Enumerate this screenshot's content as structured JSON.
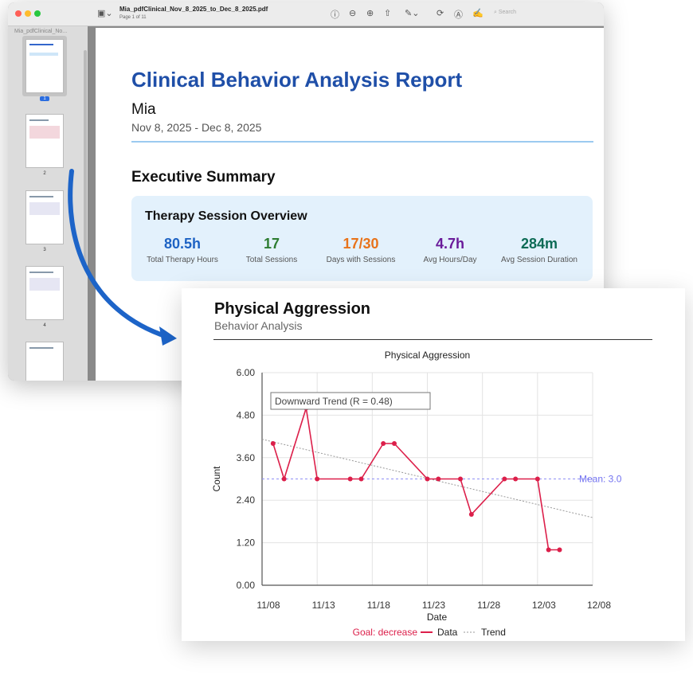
{
  "window": {
    "filename": "Mia_pdfClinical_Nov_8_2025_to_Dec_8_2025.pdf",
    "page_indicator": "Page 1 of 11",
    "search_placeholder": "Search",
    "sidebar_title": "Mia_pdfClinical_No...",
    "thumbnails": [
      {
        "label": "1"
      },
      {
        "label": "2"
      },
      {
        "label": "3"
      },
      {
        "label": "4"
      },
      {
        "label": "5"
      }
    ]
  },
  "report": {
    "title": "Clinical Behavior Analysis Report",
    "patient": "Mia",
    "date_range": "Nov 8, 2025 - Dec 8, 2025",
    "section": "Executive Summary",
    "overview": {
      "title": "Therapy Session Overview",
      "stats": [
        {
          "value": "80.5h",
          "label": "Total Therapy Hours",
          "color": "#1e63c4"
        },
        {
          "value": "17",
          "label": "Total Sessions",
          "color": "#2e7d32"
        },
        {
          "value": "17/30",
          "label": "Days with Sessions",
          "color": "#e8731a"
        },
        {
          "value": "4.7h",
          "label": "Avg Hours/Day",
          "color": "#6a1b9a"
        },
        {
          "value": "284m",
          "label": "Avg Session Duration",
          "color": "#0d6b55"
        }
      ]
    }
  },
  "behavior": {
    "title": "Physical Aggression",
    "subtitle": "Behavior Analysis"
  },
  "chart_data": {
    "type": "line",
    "title": "Physical Aggression",
    "xlabel": "Date",
    "ylabel": "Count",
    "x_ticks": [
      "11/08",
      "11/13",
      "11/18",
      "11/23",
      "11/28",
      "12/03",
      "12/08"
    ],
    "y_ticks": [
      "0.00",
      "1.20",
      "2.40",
      "3.60",
      "4.80",
      "6.00"
    ],
    "ylim": [
      0,
      6
    ],
    "xlim_days": [
      0,
      30
    ],
    "series": [
      {
        "name": "Data",
        "color": "#dc1f4a",
        "x_days": [
          1,
          2,
          4,
          5,
          8,
          9,
          11,
          12,
          15,
          16,
          18,
          19,
          22,
          23,
          25,
          26,
          27
        ],
        "values": [
          4,
          3,
          5,
          3,
          3,
          3,
          4,
          4,
          3,
          3,
          3,
          2,
          3,
          3,
          3,
          1,
          1
        ]
      }
    ],
    "trend": {
      "name": "Trend",
      "start": 4.12,
      "end": 1.91
    },
    "mean": {
      "value": 3.0,
      "label": "Mean: 3.0"
    },
    "annotation": "Downward Trend (R   = 0.48)",
    "legend": {
      "goal": "Goal: decrease",
      "data": "Data",
      "trend": "Trend"
    },
    "grid": true
  }
}
